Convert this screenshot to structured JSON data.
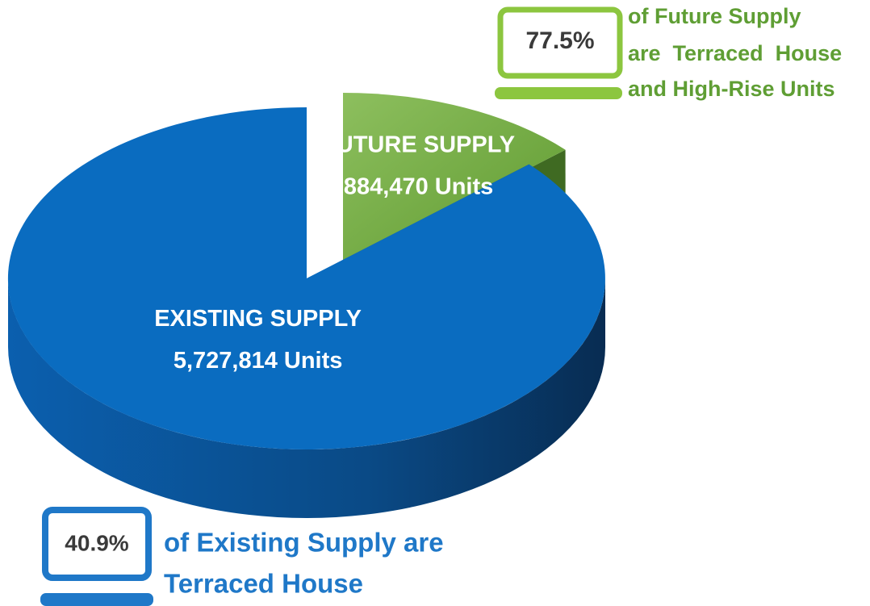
{
  "chart_data": {
    "type": "pie",
    "categories": [
      "EXISTING SUPPLY",
      "FUTURE SUPPLY"
    ],
    "values": [
      5727814,
      884470
    ],
    "value_labels": [
      "5,727,814 Units",
      "884,470 Units"
    ],
    "colors": [
      "#0a6cc0",
      "#76b043"
    ],
    "explode": [
      false,
      true
    ],
    "annotations": [
      {
        "value": "77.5%",
        "text": [
          "of Future Supply",
          "are  Terraced  House",
          "and High-Rise Units"
        ]
      },
      {
        "value": "40.9%",
        "text": [
          "of Existing Supply are",
          "Terraced House"
        ]
      }
    ]
  }
}
